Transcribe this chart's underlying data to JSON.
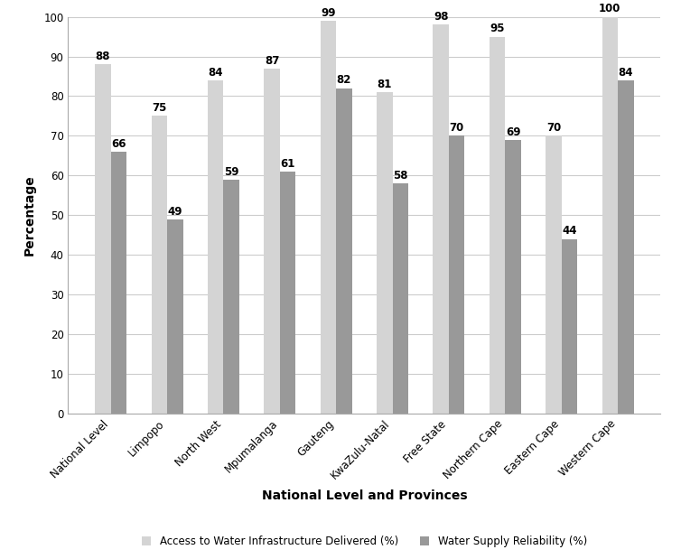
{
  "categories": [
    "National Level",
    "Limpopo",
    "North West",
    "Mpumalanga",
    "Gauteng",
    "KwaZulu-Natal",
    "Free State",
    "Northern Cape",
    "Eastern Cape",
    "Western Cape"
  ],
  "infrastructure_values": [
    88,
    75,
    84,
    87,
    99,
    81,
    98,
    95,
    70,
    100
  ],
  "supply_values": [
    66,
    49,
    59,
    61,
    82,
    58,
    70,
    69,
    44,
    84
  ],
  "bar_color_infrastructure": "#d4d4d4",
  "bar_color_supply": "#999999",
  "bar_edgecolor": "none",
  "xlabel": "National Level and Provinces",
  "ylabel": "Percentage",
  "ylim": [
    0,
    100
  ],
  "yticks": [
    0,
    10,
    20,
    30,
    40,
    50,
    60,
    70,
    80,
    90,
    100
  ],
  "legend_labels": [
    "Access to Water Infrastructure Delivered (%)",
    "Water Supply Reliability (%)"
  ],
  "bar_width": 0.28,
  "label_fontsize": 8.5,
  "axis_label_fontsize": 10,
  "tick_label_fontsize": 8.5,
  "legend_fontsize": 8.5,
  "background_color": "#ffffff",
  "grid_color": "#cccccc"
}
